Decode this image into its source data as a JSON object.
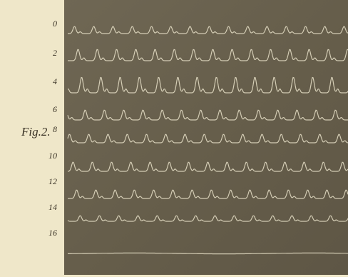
{
  "figure": {
    "label": "Fig.2.",
    "traces": [
      {
        "label": "0"
      },
      {
        "label": "2"
      },
      {
        "label": "4"
      },
      {
        "label": "6"
      },
      {
        "label": "8"
      },
      {
        "label": "10"
      },
      {
        "label": "12"
      },
      {
        "label": "14"
      },
      {
        "label": "16"
      }
    ]
  }
}
